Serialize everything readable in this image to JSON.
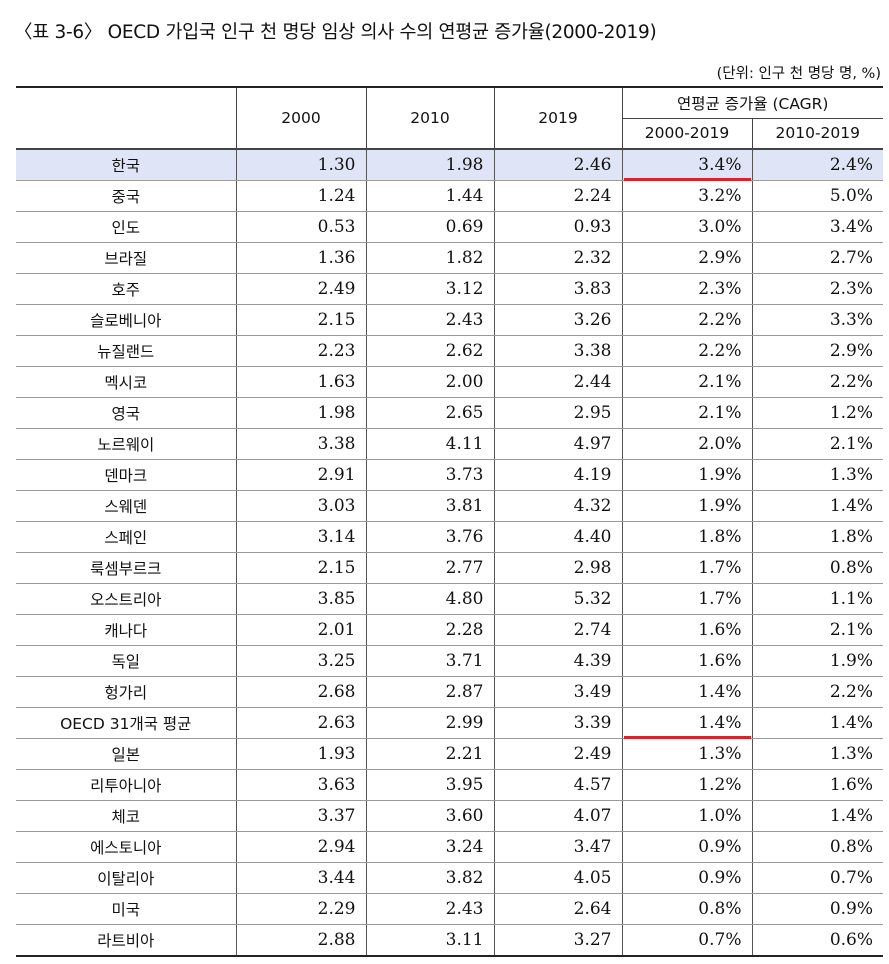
{
  "title": "〈표 3-6〉 OECD 가입국 인구 천 명당 임상 의사 수의 연평균 증가율(2000-2019)",
  "unit": "(단위: 인구 천 명당 명, %)",
  "header": {
    "y2000": "2000",
    "y2010": "2010",
    "y2019": "2019",
    "cagr": "연평균 증가율 (CAGR)",
    "c1": "2000-2019",
    "c2": "2010-2019"
  },
  "rows": [
    {
      "name": "한국",
      "v2000": "1.30",
      "v2010": "1.98",
      "v2019": "2.46",
      "c1": "3.4%",
      "c2": "2.4%"
    },
    {
      "name": "중국",
      "v2000": "1.24",
      "v2010": "1.44",
      "v2019": "2.24",
      "c1": "3.2%",
      "c2": "5.0%"
    },
    {
      "name": "인도",
      "v2000": "0.53",
      "v2010": "0.69",
      "v2019": "0.93",
      "c1": "3.0%",
      "c2": "3.4%"
    },
    {
      "name": "브라질",
      "v2000": "1.36",
      "v2010": "1.82",
      "v2019": "2.32",
      "c1": "2.9%",
      "c2": "2.7%"
    },
    {
      "name": "호주",
      "v2000": "2.49",
      "v2010": "3.12",
      "v2019": "3.83",
      "c1": "2.3%",
      "c2": "2.3%"
    },
    {
      "name": "슬로베니아",
      "v2000": "2.15",
      "v2010": "2.43",
      "v2019": "3.26",
      "c1": "2.2%",
      "c2": "3.3%"
    },
    {
      "name": "뉴질랜드",
      "v2000": "2.23",
      "v2010": "2.62",
      "v2019": "3.38",
      "c1": "2.2%",
      "c2": "2.9%"
    },
    {
      "name": "멕시코",
      "v2000": "1.63",
      "v2010": "2.00",
      "v2019": "2.44",
      "c1": "2.1%",
      "c2": "2.2%"
    },
    {
      "name": "영국",
      "v2000": "1.98",
      "v2010": "2.65",
      "v2019": "2.95",
      "c1": "2.1%",
      "c2": "1.2%"
    },
    {
      "name": "노르웨이",
      "v2000": "3.38",
      "v2010": "4.11",
      "v2019": "4.97",
      "c1": "2.0%",
      "c2": "2.1%"
    },
    {
      "name": "덴마크",
      "v2000": "2.91",
      "v2010": "3.73",
      "v2019": "4.19",
      "c1": "1.9%",
      "c2": "1.3%"
    },
    {
      "name": "스웨덴",
      "v2000": "3.03",
      "v2010": "3.81",
      "v2019": "4.32",
      "c1": "1.9%",
      "c2": "1.4%"
    },
    {
      "name": "스페인",
      "v2000": "3.14",
      "v2010": "3.76",
      "v2019": "4.40",
      "c1": "1.8%",
      "c2": "1.8%"
    },
    {
      "name": "룩셈부르크",
      "v2000": "2.15",
      "v2010": "2.77",
      "v2019": "2.98",
      "c1": "1.7%",
      "c2": "0.8%"
    },
    {
      "name": "오스트리아",
      "v2000": "3.85",
      "v2010": "4.80",
      "v2019": "5.32",
      "c1": "1.7%",
      "c2": "1.1%"
    },
    {
      "name": "캐나다",
      "v2000": "2.01",
      "v2010": "2.28",
      "v2019": "2.74",
      "c1": "1.6%",
      "c2": "2.1%"
    },
    {
      "name": "독일",
      "v2000": "3.25",
      "v2010": "3.71",
      "v2019": "4.39",
      "c1": "1.6%",
      "c2": "1.9%"
    },
    {
      "name": "헝가리",
      "v2000": "2.68",
      "v2010": "2.87",
      "v2019": "3.49",
      "c1": "1.4%",
      "c2": "2.2%"
    },
    {
      "name": "OECD 31개국 평균",
      "v2000": "2.63",
      "v2010": "2.99",
      "v2019": "3.39",
      "c1": "1.4%",
      "c2": "1.4%"
    },
    {
      "name": "일본",
      "v2000": "1.93",
      "v2010": "2.21",
      "v2019": "2.49",
      "c1": "1.3%",
      "c2": "1.3%"
    },
    {
      "name": "리투아니아",
      "v2000": "3.63",
      "v2010": "3.95",
      "v2019": "4.57",
      "c1": "1.2%",
      "c2": "1.6%"
    },
    {
      "name": "체코",
      "v2000": "3.37",
      "v2010": "3.60",
      "v2019": "4.07",
      "c1": "1.0%",
      "c2": "1.4%"
    },
    {
      "name": "에스토니아",
      "v2000": "2.94",
      "v2010": "3.24",
      "v2019": "3.47",
      "c1": "0.9%",
      "c2": "0.8%"
    },
    {
      "name": "이탈리아",
      "v2000": "3.44",
      "v2010": "3.82",
      "v2019": "4.05",
      "c1": "0.9%",
      "c2": "0.7%"
    },
    {
      "name": "미국",
      "v2000": "2.29",
      "v2010": "2.43",
      "v2019": "2.64",
      "c1": "0.8%",
      "c2": "0.9%"
    },
    {
      "name": "라트비아",
      "v2000": "2.88",
      "v2010": "3.11",
      "v2019": "3.27",
      "c1": "0.7%",
      "c2": "0.6%"
    }
  ],
  "colors": {
    "highlight_row": "#dfe4f6",
    "underline": "#d8232a"
  }
}
